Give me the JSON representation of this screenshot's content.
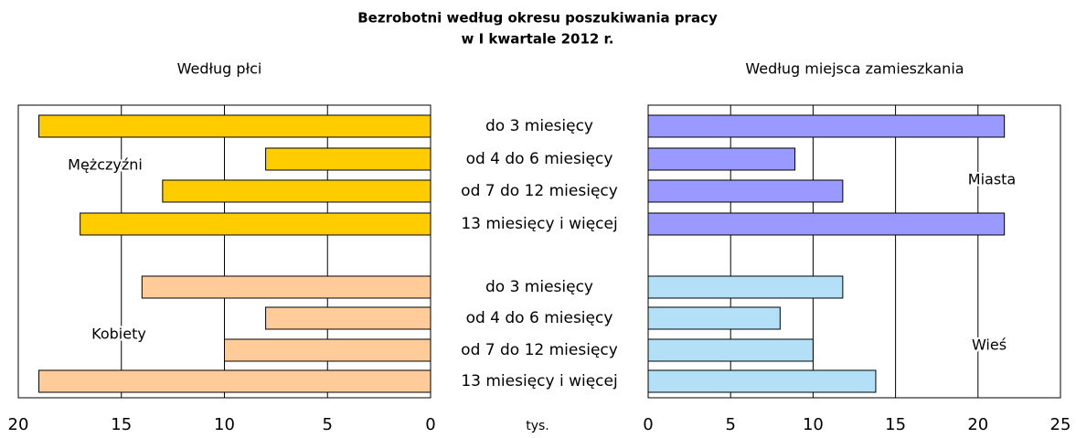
{
  "title": "Bezrobotni według okresu poszukiwania pracy",
  "title2": "w I kwartale 2012 r.",
  "categories": [
    "do 3 miesięcy",
    "od 4 do 6 miesięcy",
    "od 7 do 12 miesięcy",
    "13 miesięcy i więcej"
  ],
  "x_unit": "tys.",
  "chart_data": [
    {
      "type": "bar",
      "subtitle": "Według płci",
      "orientation": "horizontal",
      "xlim": [
        20,
        0
      ],
      "xticks": [
        20,
        15,
        10,
        5,
        0
      ],
      "grid": true,
      "series": [
        {
          "name": "Mężczyźni",
          "color": "#ffcc00",
          "values": [
            19,
            8,
            13,
            17
          ]
        },
        {
          "name": "Kobiety",
          "color": "#ffcc99",
          "values": [
            14,
            8,
            10,
            19
          ]
        }
      ]
    },
    {
      "type": "bar",
      "subtitle": "Według miejsca zamieszkania",
      "orientation": "horizontal",
      "xlim": [
        0,
        25
      ],
      "xticks": [
        0,
        5,
        10,
        15,
        20,
        25
      ],
      "grid": true,
      "series": [
        {
          "name": "Miasta",
          "color": "#9999ff",
          "values": [
            21.6,
            8.9,
            11.8,
            21.6
          ]
        },
        {
          "name": "Wieś",
          "color": "#b3dff7",
          "values": [
            11.8,
            8,
            10,
            13.8
          ]
        }
      ]
    }
  ]
}
